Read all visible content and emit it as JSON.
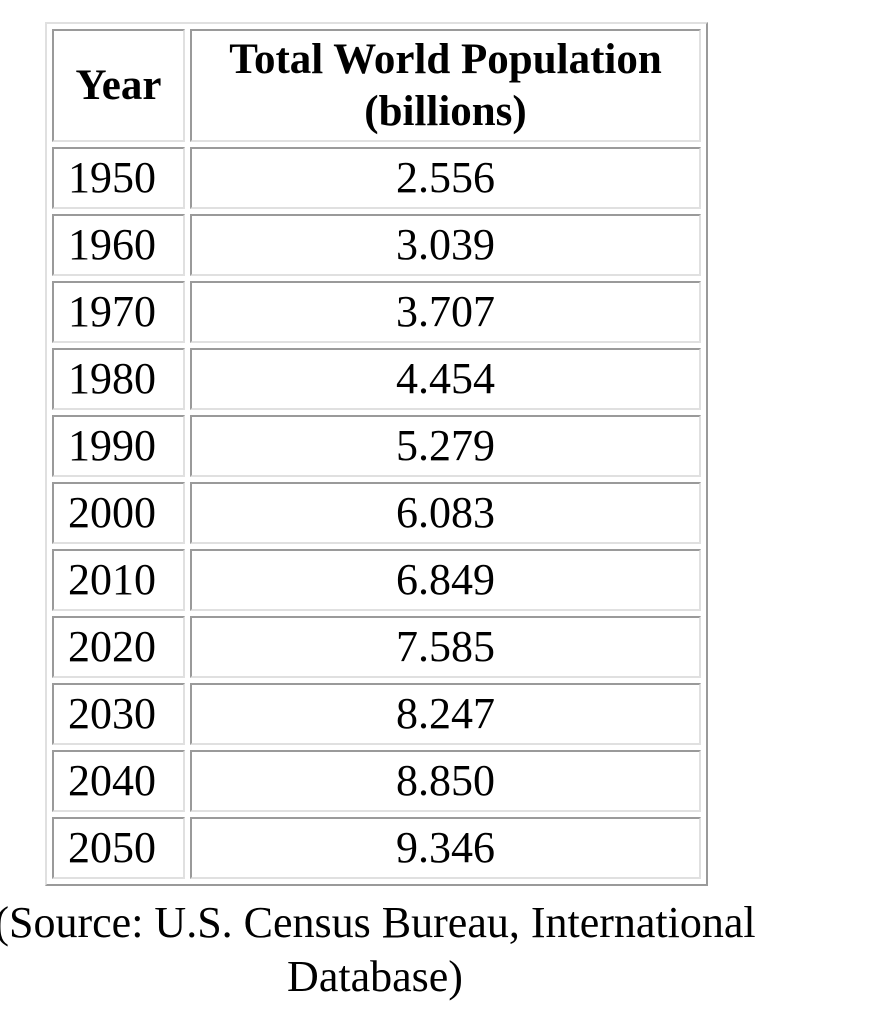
{
  "table": {
    "header": [
      "Year",
      "Total World Population (billions)"
    ],
    "rows": [
      [
        "1950",
        "2.556"
      ],
      [
        "1960",
        "3.039"
      ],
      [
        "1970",
        "3.707"
      ],
      [
        "1980",
        "4.454"
      ],
      [
        "1990",
        "5.279"
      ],
      [
        "2000",
        "6.083"
      ],
      [
        "2010",
        "6.849"
      ],
      [
        "2020",
        "7.585"
      ],
      [
        "2030",
        "8.247"
      ],
      [
        "2040",
        "8.850"
      ],
      [
        "2050",
        "9.346"
      ]
    ]
  },
  "caption": "(Source: U.S. Census Bureau, International Database)"
}
